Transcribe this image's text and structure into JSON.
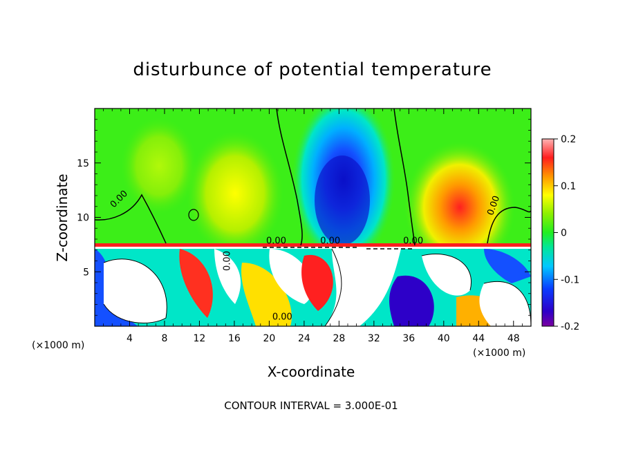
{
  "chart_data": {
    "type": "heatmap",
    "title": "disturbunce of potential temperature",
    "xlabel": "X-coordinate",
    "ylabel": "Z-coordinate",
    "x_unit_label": "(×1000 m)",
    "x_unit_label_right": "(×1000 m)",
    "xlim": [
      0,
      50
    ],
    "ylim": [
      0,
      20
    ],
    "x_ticks": [
      4,
      8,
      12,
      16,
      20,
      24,
      28,
      32,
      36,
      40,
      44,
      48
    ],
    "y_ticks": [
      5,
      10,
      15
    ],
    "colorbar": {
      "range": [
        -0.2,
        0.2
      ],
      "ticks": [
        "0.2",
        "0.1",
        "0",
        "-0.1",
        "-0.2"
      ]
    },
    "contour_labels": [
      "0.00",
      "0.00",
      "0.00",
      "0.00",
      "0.00",
      "0.00",
      "0.00"
    ],
    "contour_interval_text": "CONTOUR INTERVAL = 3.000E-01",
    "inversion_height": 7.3
  }
}
